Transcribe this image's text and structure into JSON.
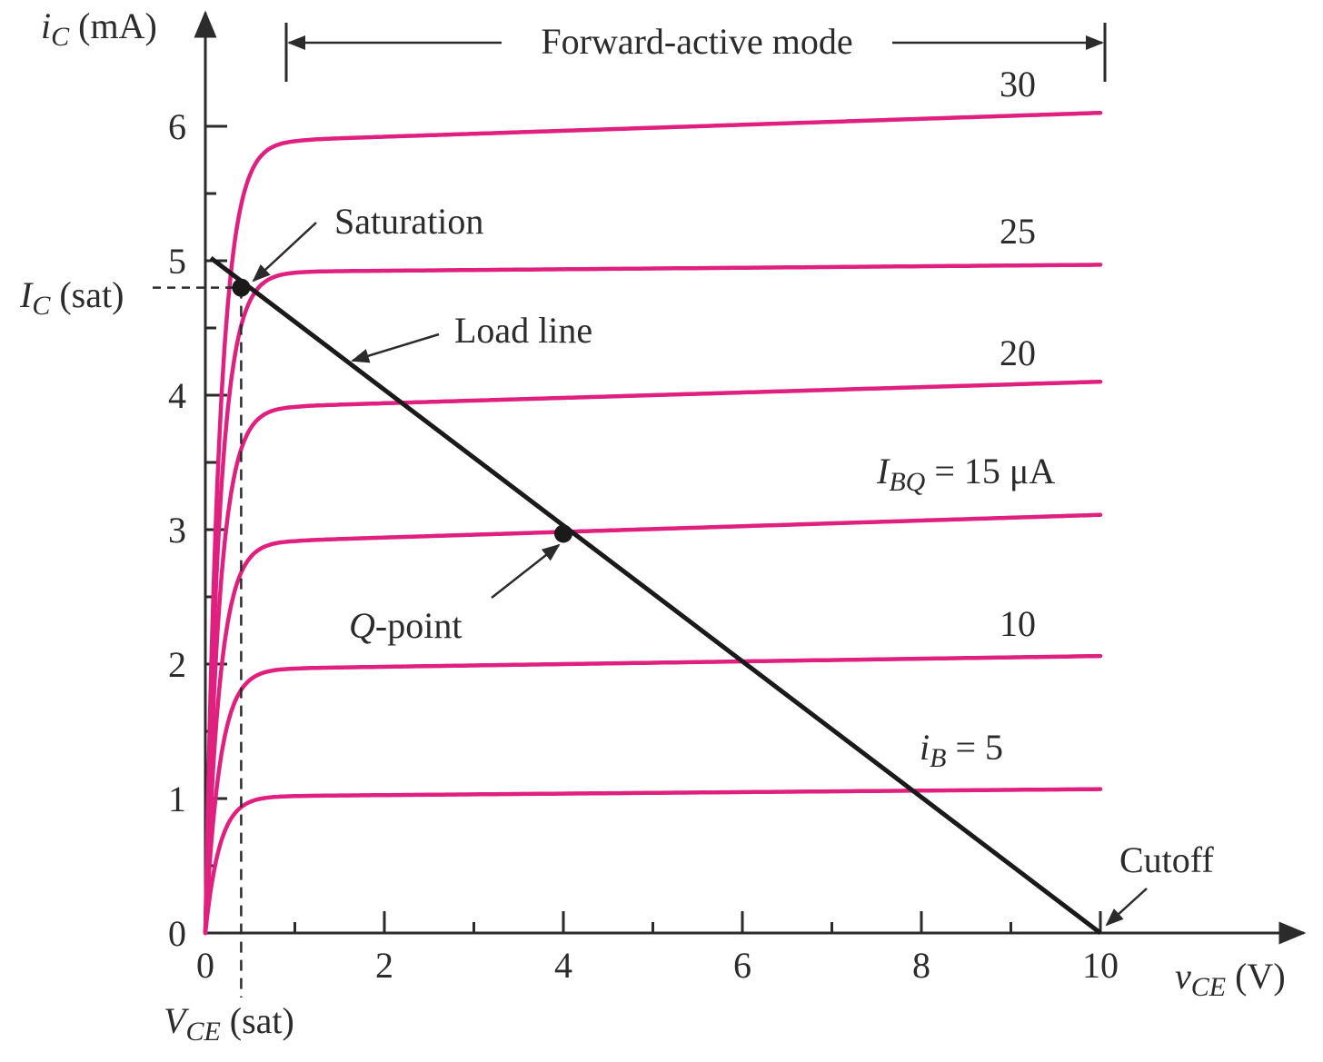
{
  "chart_data": {
    "type": "line",
    "x": {
      "min": 0,
      "max": 10,
      "ticks": [
        "0",
        "2",
        "4",
        "6",
        "8",
        "10"
      ]
    },
    "y": {
      "min": 0,
      "max": 6,
      "ticks": [
        "0",
        "1",
        "2",
        "3",
        "4",
        "5",
        "6"
      ]
    },
    "xlabel_main": "v",
    "xlabel_sub": "CE",
    "xlabel_unit": " (V)",
    "ylabel_main": "i",
    "ylabel_sub": "C",
    "ylabel_unit": " (mA)",
    "colors": {
      "curves": "#e0207f",
      "load_line": "#1a1a1a",
      "axes": "#2b2b2b"
    },
    "series": [
      {
        "label": "i_B = 5",
        "ib": 5,
        "ic_knee": 1.02,
        "ic_end": 1.07
      },
      {
        "label": "10",
        "ib": 10,
        "ic_knee": 1.97,
        "ic_end": 2.06
      },
      {
        "label": "I_BQ = 15 μA",
        "ib": 15,
        "ic_knee": 2.92,
        "ic_end": 3.11
      },
      {
        "label": "20",
        "ib": 20,
        "ic_knee": 3.92,
        "ic_end": 4.1
      },
      {
        "label": "25",
        "ib": 25,
        "ic_knee": 4.92,
        "ic_end": 4.97
      },
      {
        "label": "30",
        "ib": 30,
        "ic_knee": 5.9,
        "ic_end": 6.1
      }
    ],
    "load_line": {
      "x1": 0,
      "y1": 5,
      "x2": 10,
      "y2": 0,
      "label": "Load line"
    },
    "q_point": {
      "x": 4,
      "y": 2.97,
      "label_main": "Q",
      "label_rest": "-point"
    },
    "saturation_point": {
      "x": 0.4,
      "y": 4.8,
      "label": "Saturation"
    },
    "cutoff_point": {
      "x": 10,
      "y": 0,
      "label": "Cutoff"
    },
    "ic_sat_level": 4.8,
    "vce_sat_level": 0.4,
    "labels": {
      "forward_active": "Forward-active mode",
      "ic_sat_main": "I",
      "ic_sat_sub": "C",
      "ic_sat_rest": " (sat)",
      "vce_sat_main": "V",
      "vce_sat_sub": "CE",
      "vce_sat_rest": " (sat)",
      "c30": "30",
      "c25": "25",
      "c20": "20",
      "c15_main": "I",
      "c15_sub": "BQ",
      "c15_rest": " = 15 μA",
      "c10": "10",
      "c5_main": "i",
      "c5_sub": "B",
      "c5_rest": " = 5"
    }
  }
}
